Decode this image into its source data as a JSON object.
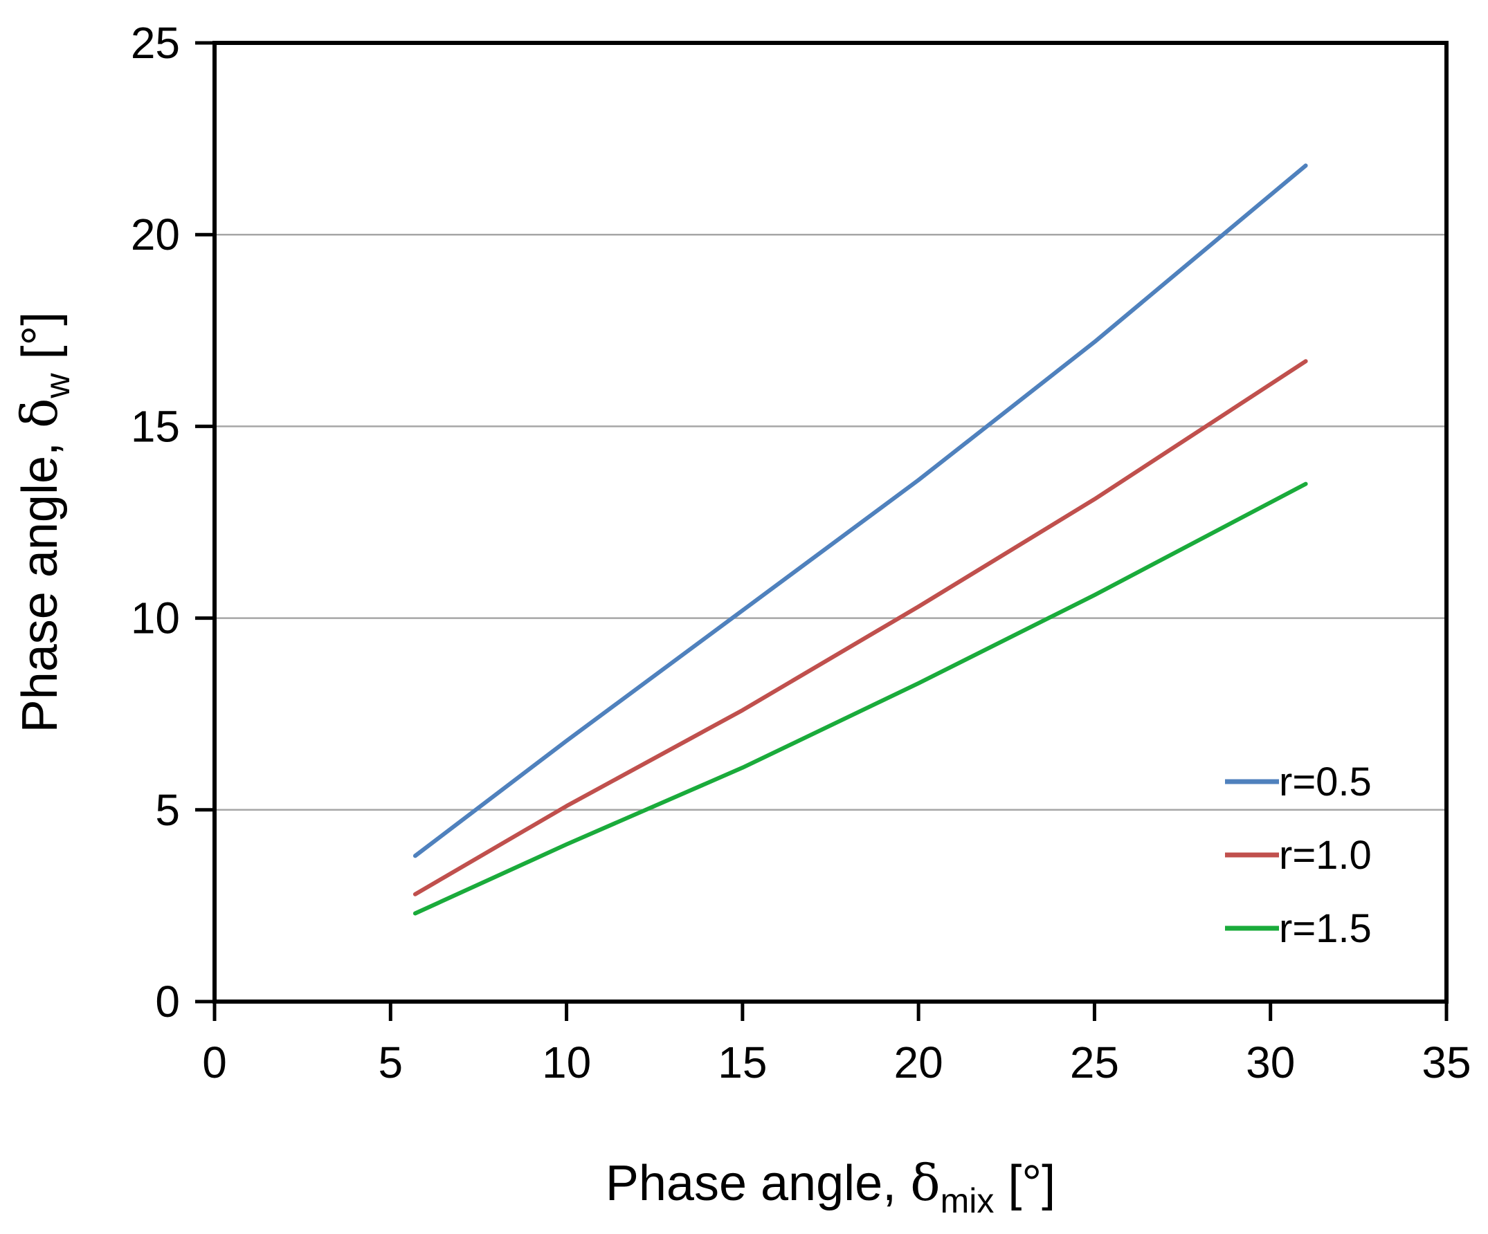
{
  "chart_data": {
    "type": "line",
    "title": "",
    "xlabel": {
      "prefix": "Phase angle, ",
      "symbol": "δ",
      "subscript": "mix",
      "suffix": " [°]"
    },
    "ylabel": {
      "prefix": "Phase angle, ",
      "symbol": "δ",
      "subscript": "w",
      "suffix": " [°]"
    },
    "xlim": [
      0,
      35
    ],
    "ylim": [
      0,
      25
    ],
    "xticks": [
      0,
      5,
      10,
      15,
      20,
      25,
      30,
      35
    ],
    "yticks": [
      0,
      5,
      10,
      15,
      20,
      25
    ],
    "grid": {
      "horizontal": true,
      "vertical": false
    },
    "legend_position": "bottom-right",
    "series": [
      {
        "name": "r=0.5",
        "color": "#4f81bd",
        "x": [
          5.7,
          10,
          15,
          20,
          25,
          31
        ],
        "y": [
          3.8,
          6.8,
          10.2,
          13.6,
          17.2,
          21.8
        ]
      },
      {
        "name": "r=1.0",
        "color": "#c0504d",
        "x": [
          5.7,
          10,
          15,
          20,
          25,
          31
        ],
        "y": [
          2.8,
          5.1,
          7.6,
          10.3,
          13.1,
          16.7
        ]
      },
      {
        "name": "r=1.5",
        "color": "#1aab3b",
        "x": [
          5.7,
          10,
          15,
          20,
          25,
          31
        ],
        "y": [
          2.3,
          4.1,
          6.1,
          8.3,
          10.6,
          13.5
        ]
      }
    ]
  }
}
